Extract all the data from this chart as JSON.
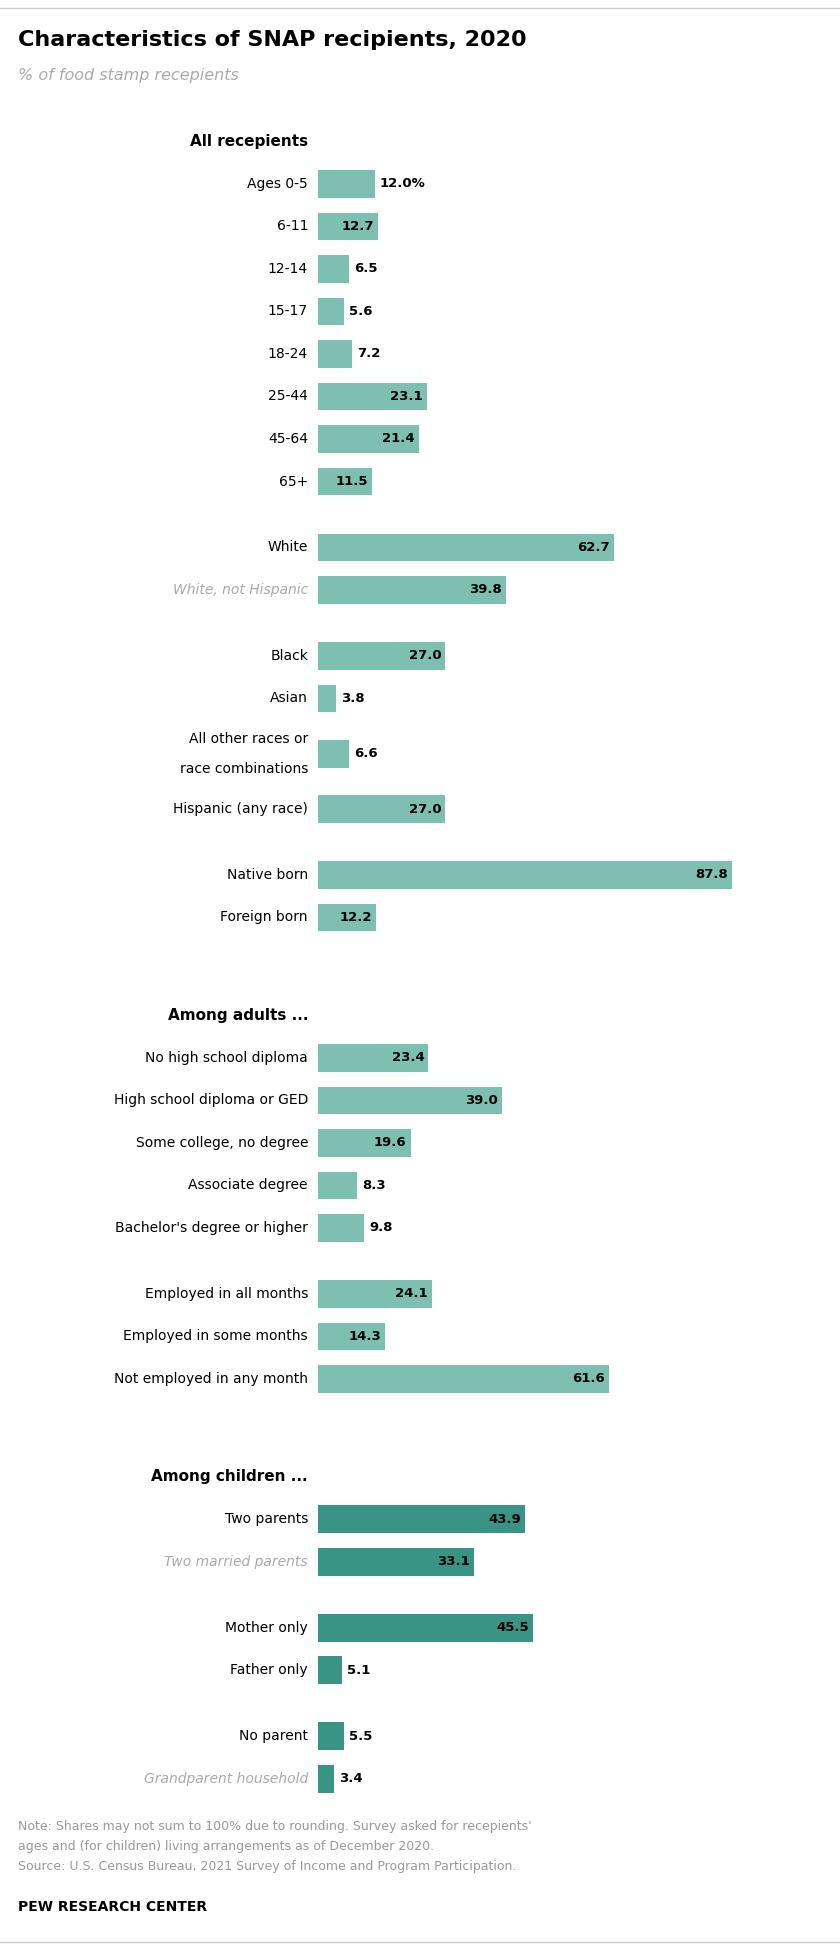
{
  "title": "Characteristics of SNAP recipients, 2020",
  "subtitle": "% of food stamp recepients",
  "bar_color_light": "#7dbfb0",
  "bar_color_dark": "#3a9485",
  "text_color": "#000000",
  "gray_label_color": "#999999",
  "note_line1": "Note: Shares may not sum to 100% due to rounding. Survey asked for recepients'",
  "note_line2": "ages and (for children) living arrangements as of December 2020.",
  "note_line3": "Source: U.S. Census Bureau, 2021 Survey of Income and Program Participation.",
  "footer": "PEW RESEARCH CENTER",
  "rows": [
    {
      "type": "header",
      "label": "All recepients",
      "value": null,
      "label_style": "bold",
      "bar_color": null,
      "val_inside": false
    },
    {
      "type": "bar",
      "label": "Ages 0-5",
      "value": 12.0,
      "label_style": "normal",
      "bar_color": "light",
      "val_inside": false,
      "show_pct": true
    },
    {
      "type": "bar",
      "label": "6-11",
      "value": 12.7,
      "label_style": "normal",
      "bar_color": "light",
      "val_inside": true,
      "show_pct": false
    },
    {
      "type": "bar",
      "label": "12-14",
      "value": 6.5,
      "label_style": "normal",
      "bar_color": "light",
      "val_inside": false,
      "show_pct": false
    },
    {
      "type": "bar",
      "label": "15-17",
      "value": 5.6,
      "label_style": "normal",
      "bar_color": "light",
      "val_inside": false,
      "show_pct": false
    },
    {
      "type": "bar",
      "label": "18-24",
      "value": 7.2,
      "label_style": "normal",
      "bar_color": "light",
      "val_inside": false,
      "show_pct": false
    },
    {
      "type": "bar",
      "label": "25-44",
      "value": 23.1,
      "label_style": "normal",
      "bar_color": "light",
      "val_inside": true,
      "show_pct": false
    },
    {
      "type": "bar",
      "label": "45-64",
      "value": 21.4,
      "label_style": "normal",
      "bar_color": "light",
      "val_inside": true,
      "show_pct": false
    },
    {
      "type": "bar",
      "label": "65+",
      "value": 11.5,
      "label_style": "normal",
      "bar_color": "light",
      "val_inside": true,
      "show_pct": false
    },
    {
      "type": "spacer",
      "label": "",
      "value": null,
      "label_style": "normal",
      "bar_color": null,
      "val_inside": false,
      "show_pct": false
    },
    {
      "type": "bar",
      "label": "White",
      "value": 62.7,
      "label_style": "normal",
      "bar_color": "light",
      "val_inside": true,
      "show_pct": false
    },
    {
      "type": "bar",
      "label": "White, not Hispanic",
      "value": 39.8,
      "label_style": "italic_gray",
      "bar_color": "light",
      "val_inside": true,
      "show_pct": false
    },
    {
      "type": "spacer",
      "label": "",
      "value": null,
      "label_style": "normal",
      "bar_color": null,
      "val_inside": false,
      "show_pct": false
    },
    {
      "type": "bar",
      "label": "Black",
      "value": 27.0,
      "label_style": "normal",
      "bar_color": "light",
      "val_inside": true,
      "show_pct": false
    },
    {
      "type": "bar",
      "label": "Asian",
      "value": 3.8,
      "label_style": "normal",
      "bar_color": "light",
      "val_inside": false,
      "show_pct": false
    },
    {
      "type": "bar",
      "label": "All other races or\nrace combinations",
      "value": 6.6,
      "label_style": "normal",
      "bar_color": "light",
      "val_inside": false,
      "show_pct": false
    },
    {
      "type": "bar",
      "label": "Hispanic (any race)",
      "value": 27.0,
      "label_style": "normal",
      "bar_color": "light",
      "val_inside": true,
      "show_pct": false
    },
    {
      "type": "spacer",
      "label": "",
      "value": null,
      "label_style": "normal",
      "bar_color": null,
      "val_inside": false,
      "show_pct": false
    },
    {
      "type": "bar",
      "label": "Native born",
      "value": 87.8,
      "label_style": "normal",
      "bar_color": "light",
      "val_inside": true,
      "show_pct": false
    },
    {
      "type": "bar",
      "label": "Foreign born",
      "value": 12.2,
      "label_style": "normal",
      "bar_color": "light",
      "val_inside": true,
      "show_pct": false
    },
    {
      "type": "spacer2",
      "label": "",
      "value": null,
      "label_style": "normal",
      "bar_color": null,
      "val_inside": false,
      "show_pct": false
    },
    {
      "type": "header",
      "label": "Among adults ...",
      "value": null,
      "label_style": "bold",
      "bar_color": null,
      "val_inside": false
    },
    {
      "type": "bar",
      "label": "No high school diploma",
      "value": 23.4,
      "label_style": "normal",
      "bar_color": "light",
      "val_inside": true,
      "show_pct": false
    },
    {
      "type": "bar",
      "label": "High school diploma or GED",
      "value": 39.0,
      "label_style": "normal",
      "bar_color": "light",
      "val_inside": true,
      "show_pct": false
    },
    {
      "type": "bar",
      "label": "Some college, no degree",
      "value": 19.6,
      "label_style": "normal",
      "bar_color": "light",
      "val_inside": true,
      "show_pct": false
    },
    {
      "type": "bar",
      "label": "Associate degree",
      "value": 8.3,
      "label_style": "normal",
      "bar_color": "light",
      "val_inside": false,
      "show_pct": false
    },
    {
      "type": "bar",
      "label": "Bachelor's degree or higher",
      "value": 9.8,
      "label_style": "normal",
      "bar_color": "light",
      "val_inside": false,
      "show_pct": false
    },
    {
      "type": "spacer",
      "label": "",
      "value": null,
      "label_style": "normal",
      "bar_color": null,
      "val_inside": false,
      "show_pct": false
    },
    {
      "type": "bar",
      "label": "Employed in all months",
      "value": 24.1,
      "label_style": "normal",
      "bar_color": "light",
      "val_inside": true,
      "show_pct": false
    },
    {
      "type": "bar",
      "label": "Employed in some months",
      "value": 14.3,
      "label_style": "normal",
      "bar_color": "light",
      "val_inside": true,
      "show_pct": false
    },
    {
      "type": "bar",
      "label": "Not employed in any month",
      "value": 61.6,
      "label_style": "normal",
      "bar_color": "light",
      "val_inside": true,
      "show_pct": false
    },
    {
      "type": "spacer2",
      "label": "",
      "value": null,
      "label_style": "normal",
      "bar_color": null,
      "val_inside": false,
      "show_pct": false
    },
    {
      "type": "header",
      "label": "Among children ...",
      "value": null,
      "label_style": "bold",
      "bar_color": null,
      "val_inside": false
    },
    {
      "type": "bar",
      "label": "Two parents",
      "value": 43.9,
      "label_style": "normal",
      "bar_color": "dark",
      "val_inside": true,
      "show_pct": false
    },
    {
      "type": "bar",
      "label": "Two married parents",
      "value": 33.1,
      "label_style": "italic_gray",
      "bar_color": "dark",
      "val_inside": true,
      "show_pct": false
    },
    {
      "type": "spacer",
      "label": "",
      "value": null,
      "label_style": "normal",
      "bar_color": null,
      "val_inside": false,
      "show_pct": false
    },
    {
      "type": "bar",
      "label": "Mother only",
      "value": 45.5,
      "label_style": "normal",
      "bar_color": "dark",
      "val_inside": true,
      "show_pct": false
    },
    {
      "type": "bar",
      "label": "Father only",
      "value": 5.1,
      "label_style": "normal",
      "bar_color": "dark",
      "val_inside": false,
      "show_pct": false
    },
    {
      "type": "spacer",
      "label": "",
      "value": null,
      "label_style": "normal",
      "bar_color": null,
      "val_inside": false,
      "show_pct": false
    },
    {
      "type": "bar",
      "label": "No parent",
      "value": 5.5,
      "label_style": "normal",
      "bar_color": "dark",
      "val_inside": false,
      "show_pct": false
    },
    {
      "type": "bar",
      "label": "Grandparent household",
      "value": 3.4,
      "label_style": "italic_gray",
      "bar_color": "dark",
      "val_inside": false,
      "show_pct": false
    }
  ]
}
